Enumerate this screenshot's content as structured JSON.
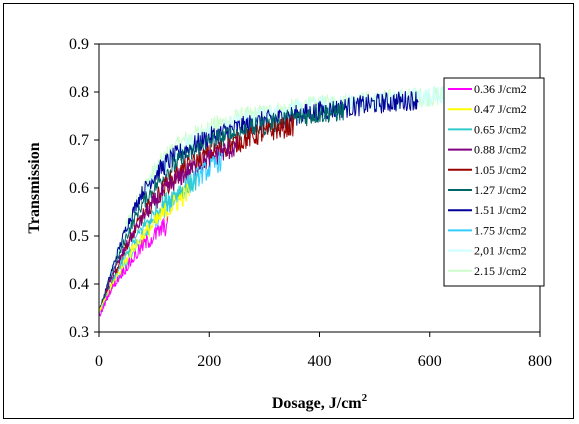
{
  "chart_data": {
    "type": "line",
    "title": "",
    "xlabel": "Dosage, J/cm",
    "xlabel_superscript": "2",
    "ylabel": "Transmission",
    "xlim": [
      0,
      800
    ],
    "ylim": [
      0.3,
      0.9
    ],
    "xticks": [
      "0",
      "200",
      "400",
      "600",
      "800"
    ],
    "yticks": [
      "0.3",
      "0.4",
      "0.5",
      "0.6",
      "0.7",
      "0.8",
      "0.9"
    ],
    "grid": false,
    "legend_position": "right",
    "series": [
      {
        "name": "0.36 J/cm2",
        "color": "#ff00ff",
        "x_end": 125,
        "x": [
          0,
          20,
          40,
          60,
          80,
          100,
          125
        ],
        "y": [
          0.33,
          0.385,
          0.42,
          0.45,
          0.48,
          0.5,
          0.525
        ]
      },
      {
        "name": "0.47 J/cm2",
        "color": "#ffff00",
        "x_end": 165,
        "x": [
          0,
          20,
          40,
          60,
          80,
          100,
          120,
          140,
          165
        ],
        "y": [
          0.34,
          0.39,
          0.43,
          0.47,
          0.5,
          0.525,
          0.55,
          0.57,
          0.595
        ]
      },
      {
        "name": "0.65 J/cm2",
        "color": "#33cccc",
        "x_end": 180,
        "x": [
          0,
          20,
          40,
          60,
          80,
          100,
          120,
          140,
          160,
          180
        ],
        "y": [
          0.34,
          0.39,
          0.44,
          0.48,
          0.52,
          0.545,
          0.57,
          0.59,
          0.605,
          0.615
        ]
      },
      {
        "name": "0.88 J/cm2",
        "color": "#800080",
        "x_end": 250,
        "x": [
          0,
          25,
          50,
          75,
          100,
          125,
          150,
          175,
          200,
          225,
          250
        ],
        "y": [
          0.34,
          0.42,
          0.48,
          0.53,
          0.57,
          0.6,
          0.625,
          0.645,
          0.66,
          0.675,
          0.685
        ]
      },
      {
        "name": "1.05 J/cm2",
        "color": "#990000",
        "x_end": 355,
        "x": [
          0,
          25,
          50,
          75,
          100,
          125,
          150,
          200,
          250,
          300,
          355
        ],
        "y": [
          0.34,
          0.41,
          0.48,
          0.535,
          0.575,
          0.61,
          0.635,
          0.67,
          0.695,
          0.715,
          0.73
        ]
      },
      {
        "name": "1.27 J/cm2",
        "color": "#006666",
        "x_end": 445,
        "x": [
          0,
          25,
          50,
          75,
          100,
          125,
          150,
          200,
          250,
          300,
          350,
          400,
          445
        ],
        "y": [
          0.34,
          0.425,
          0.5,
          0.56,
          0.6,
          0.635,
          0.66,
          0.695,
          0.715,
          0.73,
          0.745,
          0.755,
          0.76
        ]
      },
      {
        "name": "1.51 J/cm2",
        "color": "#000099",
        "x_end": 580,
        "x": [
          0,
          25,
          50,
          75,
          100,
          125,
          150,
          200,
          250,
          300,
          350,
          400,
          450,
          500,
          580
        ],
        "y": [
          0.34,
          0.435,
          0.52,
          0.585,
          0.625,
          0.655,
          0.675,
          0.705,
          0.725,
          0.74,
          0.75,
          0.76,
          0.768,
          0.775,
          0.785
        ]
      },
      {
        "name": "1.75 J/cm2",
        "color": "#33ccff",
        "x_end": 225,
        "x": [
          0,
          25,
          50,
          75,
          100,
          125,
          150,
          175,
          200,
          225
        ],
        "y": [
          0.34,
          0.395,
          0.445,
          0.49,
          0.53,
          0.565,
          0.595,
          0.62,
          0.64,
          0.66
        ]
      },
      {
        "name": "2,01 J/cm2",
        "color": "#ccffff",
        "x_end": 710,
        "x": [
          0,
          25,
          50,
          75,
          100,
          125,
          150,
          200,
          250,
          300,
          350,
          400,
          450,
          500,
          550,
          600,
          650,
          710
        ],
        "y": [
          0.34,
          0.43,
          0.51,
          0.575,
          0.62,
          0.66,
          0.685,
          0.715,
          0.735,
          0.75,
          0.76,
          0.77,
          0.775,
          0.78,
          0.785,
          0.79,
          0.793,
          0.795
        ]
      },
      {
        "name": "2.15 J/cm2",
        "color": "#ccffcc",
        "x_end": 720,
        "x": [
          0,
          25,
          50,
          75,
          100,
          125,
          150,
          200,
          250,
          300,
          350,
          400,
          450,
          500,
          550,
          600,
          650,
          720
        ],
        "y": [
          0.34,
          0.44,
          0.525,
          0.59,
          0.635,
          0.67,
          0.695,
          0.725,
          0.745,
          0.755,
          0.765,
          0.772,
          0.778,
          0.782,
          0.787,
          0.791,
          0.795,
          0.8
        ]
      }
    ]
  }
}
